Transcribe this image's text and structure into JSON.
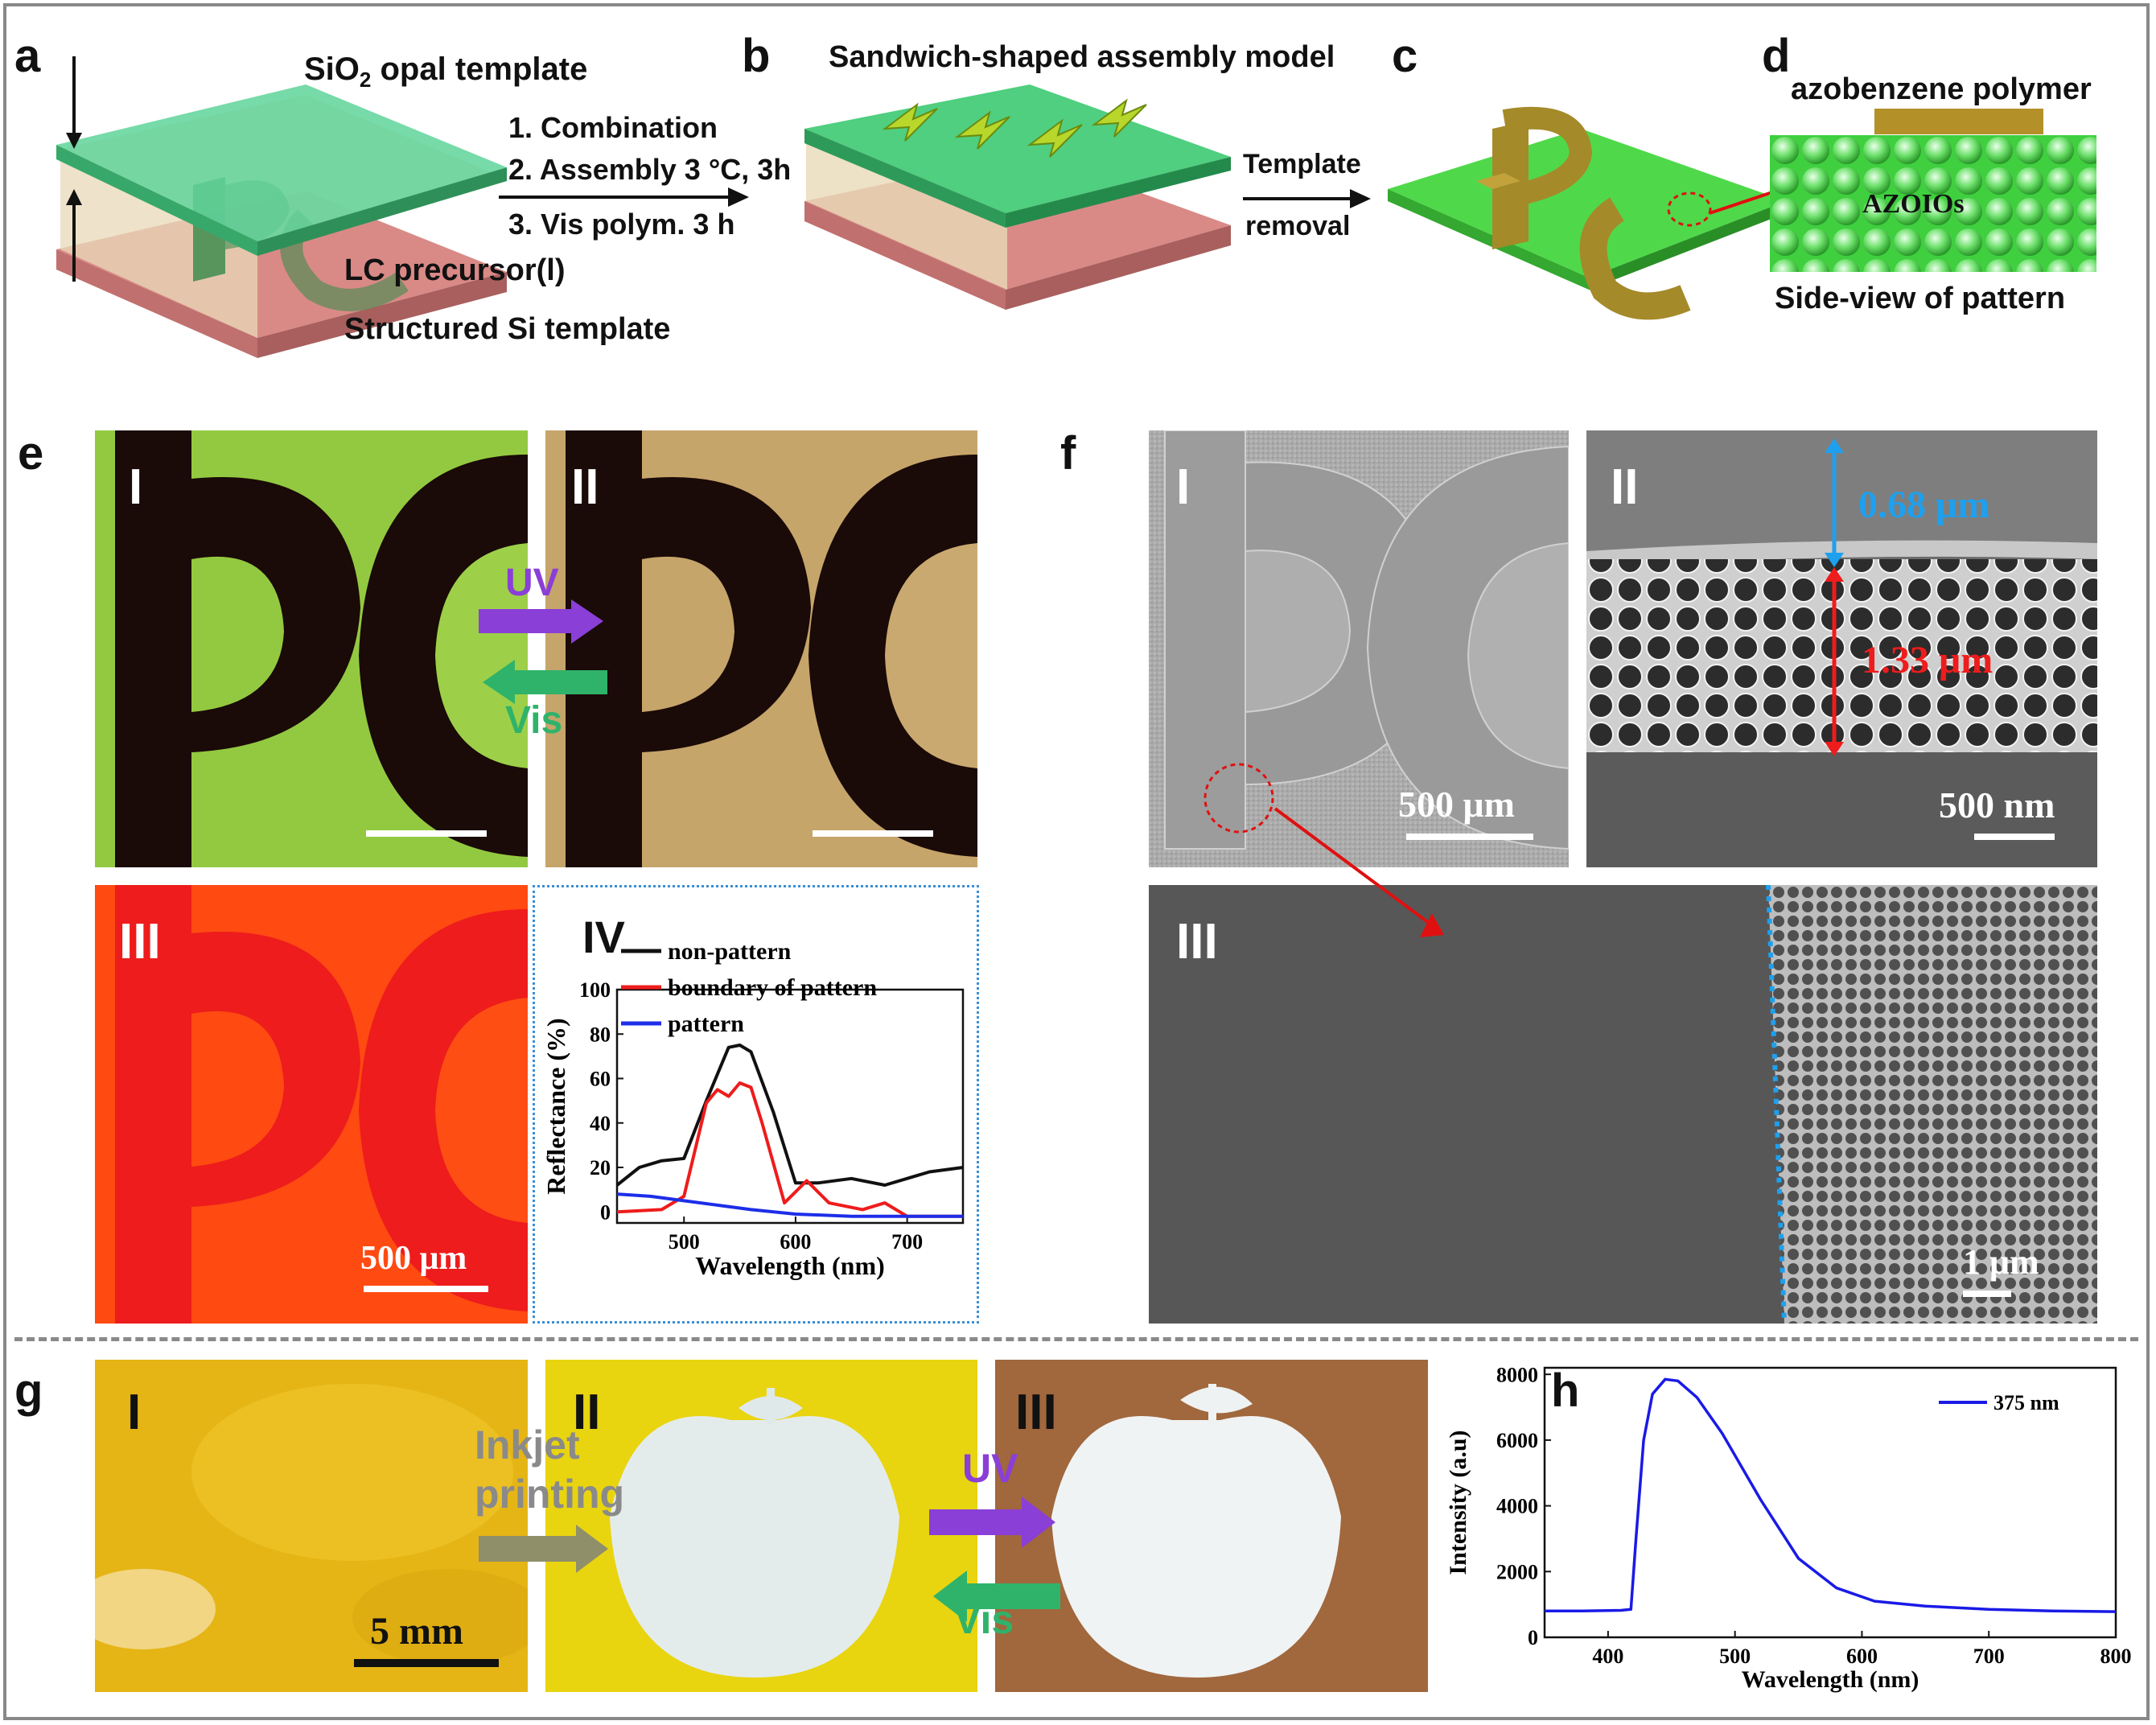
{
  "top": {
    "labels": {
      "a": "a",
      "b": "b",
      "c": "c",
      "d": "d"
    },
    "a": {
      "template": "SiO",
      "template_sub": "2",
      "template_rest": " opal template",
      "lc": "LC precursor(l)",
      "si": "Structured Si template"
    },
    "steps": [
      "1. Combination",
      "2. Assembly 3 ",
      "°C, 3h",
      "3. Vis polym. 3 h"
    ],
    "b": {
      "title": "Sandwich-shaped assembly model"
    },
    "arrow2": {
      "line1": "Template",
      "line2": "removal"
    },
    "d": {
      "title": "azobenzene polymer",
      "inner": "AZOIOs",
      "caption": "Side-view of pattern"
    }
  },
  "e": {
    "label": "e",
    "roman": [
      "I",
      "II",
      "III",
      "IV"
    ],
    "uv": "UV",
    "vis": "Vis",
    "scale": "500 μm",
    "chart_data": {
      "type": "line",
      "xlabel": "Wavelength (nm)",
      "ylabel": "Reflectance (%)",
      "xlim": [
        440,
        750
      ],
      "ylim": [
        -5,
        100
      ],
      "xticks": [
        500,
        600,
        700
      ],
      "yticks": [
        0,
        20,
        40,
        60,
        80,
        100
      ],
      "legend": "top",
      "series": [
        {
          "name": "non-pattern",
          "color": "#111111",
          "x": [
            440,
            460,
            480,
            500,
            520,
            540,
            550,
            560,
            580,
            600,
            620,
            650,
            680,
            720,
            750
          ],
          "y": [
            12,
            20,
            23,
            24,
            50,
            74,
            75,
            72,
            45,
            13,
            13,
            15,
            12,
            18,
            20
          ]
        },
        {
          "name": "boundary of pattern",
          "color": "#ee1c1c",
          "x": [
            440,
            480,
            500,
            520,
            530,
            540,
            550,
            560,
            570,
            590,
            610,
            630,
            660,
            680,
            700,
            750
          ],
          "y": [
            0,
            1,
            7,
            49,
            55,
            52,
            58,
            56,
            40,
            4,
            14,
            4,
            1,
            4,
            -2,
            -2
          ]
        },
        {
          "name": "pattern",
          "color": "#1c2ee8",
          "x": [
            440,
            470,
            500,
            530,
            560,
            600,
            650,
            700,
            750
          ],
          "y": [
            8,
            7,
            5,
            3,
            1,
            -1,
            -2,
            -2,
            -2
          ]
        }
      ]
    }
  },
  "f": {
    "label": "f",
    "roman": [
      "I",
      "II",
      "III"
    ],
    "scale1": "500 μm",
    "dim_top": "0.68 μm",
    "dim_mid": "1.33 μm",
    "scale2": "500 nm",
    "scale3": "1 μm"
  },
  "g": {
    "label": "g",
    "roman": [
      "I",
      "II",
      "III"
    ],
    "inkjet": "Inkjet",
    "printing": "printing",
    "uv": "UV",
    "vis": "Vis",
    "scale": "5 mm"
  },
  "h": {
    "label": "h",
    "chart_data": {
      "type": "line",
      "xlabel": "Wavelength (nm)",
      "ylabel": "Intensity (a.u)",
      "xlim": [
        350,
        800
      ],
      "ylim": [
        0,
        8200
      ],
      "xticks": [
        400,
        500,
        600,
        700,
        800
      ],
      "yticks": [
        0,
        2000,
        4000,
        6000,
        8000
      ],
      "legend": "top-right",
      "series": [
        {
          "name": "375 nm",
          "color": "#1a1ae6",
          "x": [
            350,
            380,
            410,
            418,
            422,
            428,
            435,
            445,
            455,
            470,
            490,
            520,
            550,
            580,
            610,
            650,
            700,
            750,
            800
          ],
          "y": [
            800,
            800,
            820,
            850,
            3000,
            6000,
            7400,
            7850,
            7800,
            7300,
            6200,
            4200,
            2400,
            1500,
            1100,
            950,
            850,
            800,
            780
          ]
        }
      ]
    }
  }
}
